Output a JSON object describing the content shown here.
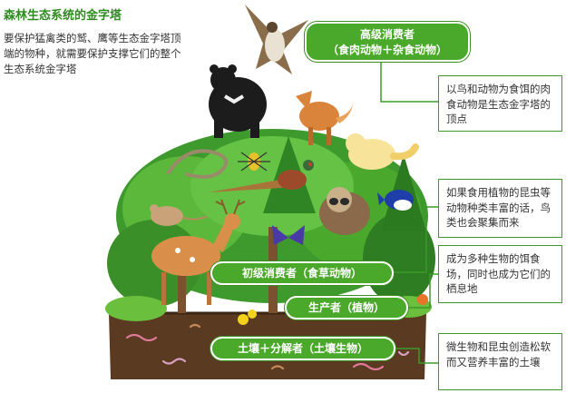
{
  "header": {
    "title": "森林生态系统的金字塔",
    "intro": "要保护猛禽类的鹫、鹰等生态金字塔顶端的物种，就需要保护支撑它们的整个生态系统金字塔"
  },
  "levels": {
    "top": {
      "line1": "高级消费者",
      "line2": "（食肉动物＋杂食动物）"
    },
    "primary": {
      "label": "初级消费者（食草动物）"
    },
    "producer": {
      "label": "生产者（植物）"
    },
    "soil": {
      "label": "土壤＋分解者（土壤生物）"
    }
  },
  "notes": {
    "top": "以鸟和动物为食饵的肉食动物是生态金字塔的顶点",
    "birds": "如果食用植物的昆虫等动物种类丰富的话，鸟类也会聚集而来",
    "plants": "成为多种生物的饵食场，同时也成为它们的栖息地",
    "soil": "微生物和昆虫创造松软而又营养丰富的土壤"
  },
  "colors": {
    "accent_green": "#4aa82a",
    "title_green": "#2e8b1f",
    "border_green": "#3d9a2a",
    "soil_brown": "#5a3b22"
  }
}
